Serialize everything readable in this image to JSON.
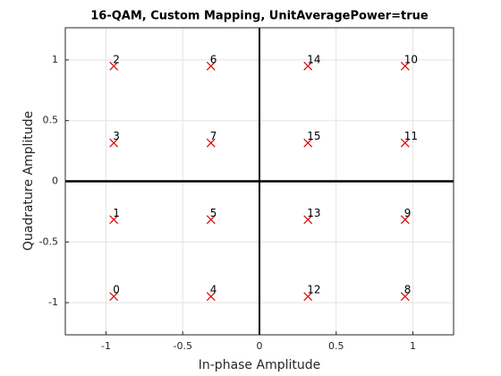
{
  "chart_data": {
    "type": "scatter",
    "title": "16-QAM, Custom Mapping, UnitAveragePower=true",
    "x_label": "In-phase Amplitude",
    "y_label": "Quadrature Amplitude",
    "series": [
      {
        "color": "#e00000",
        "x": [
          -0.949,
          -0.949,
          -0.949,
          -0.949,
          -0.316,
          -0.316,
          -0.316,
          -0.316,
          0.949,
          0.949,
          0.949,
          0.949,
          0.316,
          0.316,
          0.316,
          0.316
        ],
        "values": [
          -0.949,
          -0.316,
          0.949,
          0.316,
          -0.949,
          -0.316,
          0.949,
          0.316,
          -0.949,
          -0.316,
          0.949,
          0.316,
          -0.949,
          -0.316,
          0.949,
          0.316
        ],
        "point_labels": [
          "0",
          "1",
          "2",
          "3",
          "4",
          "5",
          "6",
          "7",
          "8",
          "9",
          "10",
          "11",
          "12",
          "13",
          "14",
          "15"
        ]
      }
    ],
    "xlim": [
      -1.265,
      1.265
    ],
    "ylim": [
      -1.265,
      1.265
    ],
    "xticks": [
      -1,
      -0.5,
      0,
      0.5,
      1
    ],
    "yticks": [
      -1,
      -0.5,
      0,
      0.5,
      1
    ],
    "grid": true
  }
}
